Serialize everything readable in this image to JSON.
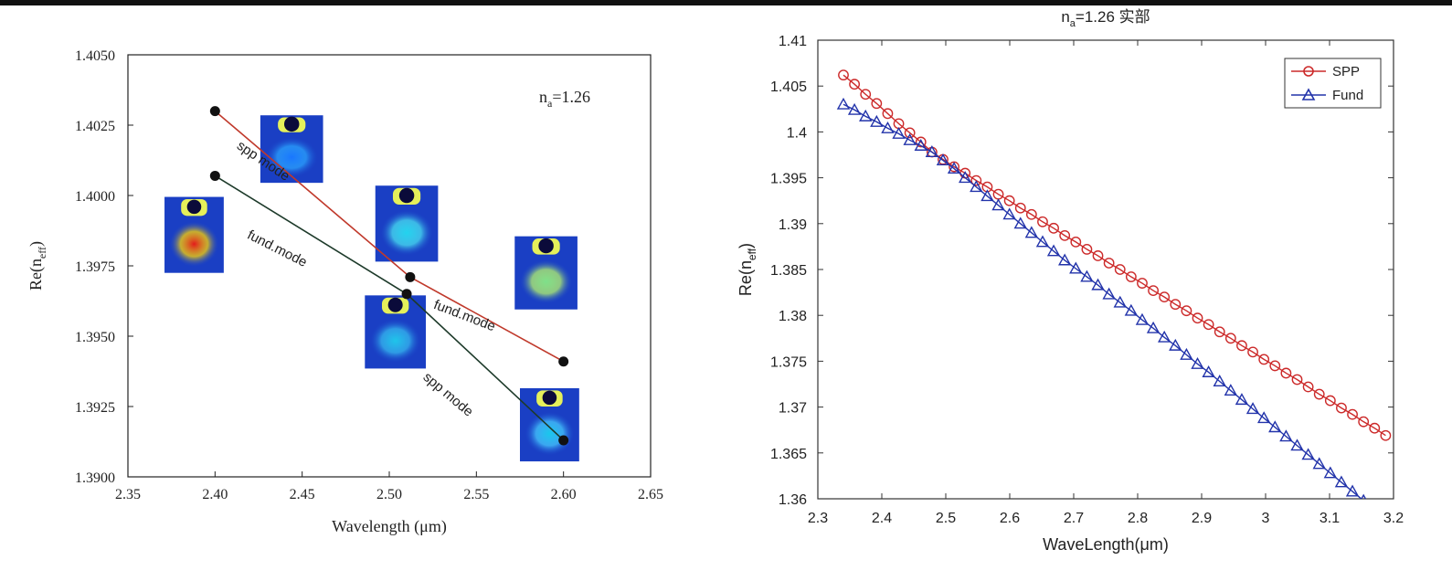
{
  "chart_data": [
    {
      "type": "line",
      "xlabel": "Wavelength (μm)",
      "ylabel_main": "Re(n",
      "ylabel_sub": "eff",
      "ylabel_end": ")",
      "annotation_main": "n",
      "annotation_sub": "a",
      "annotation_rest": "=1.26",
      "xlim": [
        2.35,
        2.65
      ],
      "ylim": [
        1.39,
        1.405
      ],
      "x_ticks": [
        "2.35",
        "2.40",
        "2.45",
        "2.50",
        "2.55",
        "2.60",
        "2.65"
      ],
      "y_ticks": [
        "1.3900",
        "1.3925",
        "1.3950",
        "1.3975",
        "1.4000",
        "1.4025",
        "1.4050"
      ],
      "series": [
        {
          "color": "#c0392b",
          "points": [
            {
              "x": 2.4,
              "y": 1.403
            },
            {
              "x": 2.512,
              "y": 1.3971
            },
            {
              "x": 2.6,
              "y": 1.3941
            }
          ]
        },
        {
          "color": "#1d3a2a",
          "points": [
            {
              "x": 2.4,
              "y": 1.4007
            },
            {
              "x": 2.51,
              "y": 1.3965
            },
            {
              "x": 2.6,
              "y": 1.3913
            }
          ]
        }
      ],
      "line_labels": [
        {
          "text": "spp mode",
          "x": 2.412,
          "y": 1.4017,
          "angle": 34
        },
        {
          "text": "fund.mode",
          "x": 2.418,
          "y": 1.3985,
          "angle": 27
        },
        {
          "text": "fund.mode",
          "x": 2.525,
          "y": 1.396,
          "angle": 21
        },
        {
          "text": "spp mode",
          "x": 2.519,
          "y": 1.3935,
          "angle": 40
        }
      ],
      "mode_images": [
        {
          "x0": 2.371,
          "x1": 2.405,
          "y_top": 1.39995,
          "y_bot": 1.39725,
          "spot": "#e31a1c",
          "glow": "#ffd300"
        },
        {
          "x0": 2.426,
          "x1": 2.462,
          "y_top": 1.40285,
          "y_bot": 1.40045,
          "spot": "#1976ff",
          "glow": "#2aa4ff"
        },
        {
          "x0": 2.492,
          "x1": 2.528,
          "y_top": 1.40035,
          "y_bot": 1.39765,
          "spot": "#22d3ee",
          "glow": "#48e1f2"
        },
        {
          "x0": 2.572,
          "x1": 2.608,
          "y_top": 1.39855,
          "y_bot": 1.39595,
          "spot": "#7ee08a",
          "glow": "#b6f56c"
        },
        {
          "x0": 2.486,
          "x1": 2.521,
          "y_top": 1.39645,
          "y_bot": 1.39385,
          "spot": "#1ec5ea",
          "glow": "#35b9f0"
        },
        {
          "x0": 2.575,
          "x1": 2.609,
          "y_top": 1.39315,
          "y_bot": 1.39055,
          "spot": "#19c7ec",
          "glow": "#45c9ff"
        }
      ]
    },
    {
      "type": "line",
      "title_main": "n",
      "title_sub": "a",
      "title_rest": "=1.26 实部",
      "xlabel": "WaveLength(μm)",
      "ylabel_main": "Re(n",
      "ylabel_sub": "eff",
      "ylabel_end": ")",
      "xlim": [
        2.3,
        3.2
      ],
      "ylim": [
        1.36,
        1.41
      ],
      "x_ticks": [
        "2.3",
        "2.4",
        "2.5",
        "2.6",
        "2.7",
        "2.8",
        "2.9",
        "3",
        "3.1",
        "3.2"
      ],
      "y_ticks": [
        "1.36",
        "1.365",
        "1.37",
        "1.375",
        "1.38",
        "1.385",
        "1.39",
        "1.395",
        "1.4",
        "1.405",
        "1.41"
      ],
      "legend_position": "top-right",
      "series": [
        {
          "name": "SPP",
          "marker": "circle",
          "color": "#cc2a2a",
          "x_start": 2.34,
          "x_step": 0.0173,
          "values": [
            1.4062,
            1.4052,
            1.4041,
            1.4031,
            1.402,
            1.4009,
            1.3999,
            1.3989,
            1.3978,
            1.397,
            1.3962,
            1.3955,
            1.3947,
            1.394,
            1.3932,
            1.3925,
            1.3917,
            1.391,
            1.3902,
            1.3895,
            1.3887,
            1.388,
            1.3872,
            1.3865,
            1.3857,
            1.385,
            1.3842,
            1.3835,
            1.3827,
            1.382,
            1.3812,
            1.3805,
            1.3797,
            1.379,
            1.3782,
            1.3775,
            1.3767,
            1.376,
            1.3752,
            1.3745,
            1.3737,
            1.373,
            1.3722,
            1.3714,
            1.3707,
            1.3699,
            1.3692,
            1.3684,
            1.3677,
            1.3669
          ]
        },
        {
          "name": "Fund",
          "marker": "triangle",
          "color": "#2233aa",
          "x_start": 2.34,
          "x_step": 0.0173,
          "values": [
            1.403,
            1.4024,
            1.4017,
            1.4011,
            1.4004,
            1.3998,
            1.3991,
            1.3985,
            1.3978,
            1.3969,
            1.396,
            1.395,
            1.394,
            1.393,
            1.392,
            1.391,
            1.39,
            1.389,
            1.388,
            1.387,
            1.386,
            1.3851,
            1.3842,
            1.3833,
            1.3823,
            1.3814,
            1.3805,
            1.3795,
            1.3786,
            1.3776,
            1.3767,
            1.3757,
            1.3747,
            1.3738,
            1.3728,
            1.3718,
            1.3708,
            1.3698,
            1.3688,
            1.3678,
            1.3668,
            1.3658,
            1.3648,
            1.3638,
            1.3628,
            1.3618,
            1.3608,
            1.3598,
            1.3588,
            1.3578
          ]
        }
      ]
    }
  ]
}
